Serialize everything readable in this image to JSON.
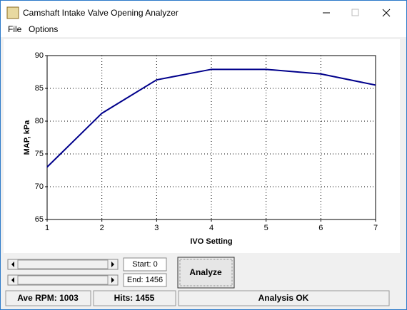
{
  "window": {
    "title": "Camshaft Intake Valve Opening Analyzer"
  },
  "menu": [
    "File",
    "Options"
  ],
  "chart_data": {
    "type": "line",
    "x_label": "IVO Setting",
    "y_label": "MAP, kPa",
    "x": [
      1,
      2,
      3,
      4,
      5,
      6,
      7
    ],
    "series": [
      {
        "color": "#00008b",
        "values": [
          73,
          81.2,
          86.3,
          87.9,
          87.9,
          87.2,
          85.5
        ]
      }
    ],
    "xlim": [
      1,
      7
    ],
    "xticks": [
      1,
      2,
      3,
      4,
      5,
      6,
      7
    ],
    "ylim": [
      65,
      90
    ],
    "yticks": [
      65,
      70,
      75,
      80,
      85,
      90
    ],
    "grid": true
  },
  "controls": {
    "start": "Start: 0",
    "end": "End: 1456",
    "button": "Analyze"
  },
  "status": [
    "Ave RPM: 1003",
    "Hits: 1455",
    "Analysis OK"
  ]
}
